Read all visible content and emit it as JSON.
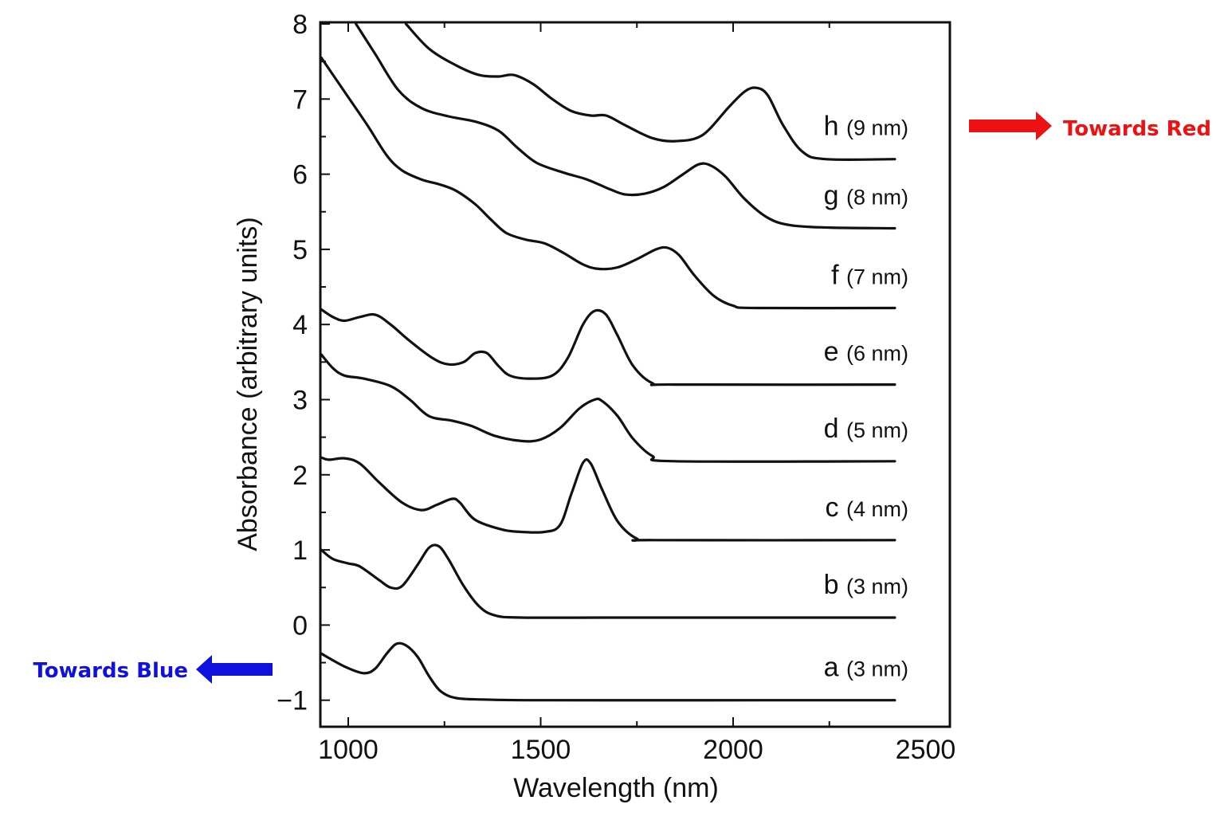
{
  "chart_data": {
    "type": "line",
    "title": "",
    "xlabel": "Wavelength (nm)",
    "ylabel": "Absorbance (arbitrary units)",
    "xlim": [
      930,
      2500
    ],
    "ylim": [
      -1.35,
      8
    ],
    "xticks": [
      1000,
      1500,
      2000,
      2500
    ],
    "xtick_labels": [
      "1000",
      "1500",
      "2000",
      "2500"
    ],
    "yticks": [
      -1,
      0,
      1,
      2,
      3,
      4,
      5,
      6,
      7,
      8
    ],
    "ytick_labels": [
      "−1",
      "0",
      "1",
      "2",
      "3",
      "4",
      "5",
      "6",
      "7",
      "8"
    ],
    "grid": false,
    "legend": "none (labels placed at right end of each curve)",
    "series": [
      {
        "name": "a",
        "size_label": "(3 nm)",
        "points": [
          [
            930,
            -0.38
          ],
          [
            990,
            -0.55
          ],
          [
            1040,
            -0.64
          ],
          [
            1070,
            -0.58
          ],
          [
            1100,
            -0.38
          ],
          [
            1125,
            -0.25
          ],
          [
            1150,
            -0.27
          ],
          [
            1180,
            -0.42
          ],
          [
            1210,
            -0.68
          ],
          [
            1240,
            -0.88
          ],
          [
            1280,
            -0.97
          ],
          [
            1350,
            -0.99
          ],
          [
            1500,
            -1.0
          ],
          [
            2100,
            -1.0
          ],
          [
            2420,
            -1.0
          ]
        ]
      },
      {
        "name": "b",
        "size_label": "(3 nm)",
        "points": [
          [
            930,
            1.0
          ],
          [
            960,
            0.88
          ],
          [
            1000,
            0.82
          ],
          [
            1030,
            0.78
          ],
          [
            1080,
            0.6
          ],
          [
            1110,
            0.5
          ],
          [
            1140,
            0.52
          ],
          [
            1180,
            0.8
          ],
          [
            1210,
            1.03
          ],
          [
            1235,
            1.05
          ],
          [
            1260,
            0.88
          ],
          [
            1300,
            0.52
          ],
          [
            1340,
            0.25
          ],
          [
            1380,
            0.13
          ],
          [
            1450,
            0.1
          ],
          [
            1700,
            0.1
          ],
          [
            2420,
            0.1
          ]
        ]
      },
      {
        "name": "c",
        "size_label": "(4 nm)",
        "points": [
          [
            930,
            2.23
          ],
          [
            950,
            2.2
          ],
          [
            990,
            2.22
          ],
          [
            1030,
            2.15
          ],
          [
            1080,
            1.9
          ],
          [
            1140,
            1.63
          ],
          [
            1190,
            1.53
          ],
          [
            1230,
            1.6
          ],
          [
            1270,
            1.68
          ],
          [
            1290,
            1.63
          ],
          [
            1330,
            1.4
          ],
          [
            1400,
            1.27
          ],
          [
            1450,
            1.24
          ],
          [
            1510,
            1.24
          ],
          [
            1550,
            1.33
          ],
          [
            1580,
            1.75
          ],
          [
            1610,
            2.16
          ],
          [
            1630,
            2.15
          ],
          [
            1660,
            1.8
          ],
          [
            1700,
            1.38
          ],
          [
            1750,
            1.15
          ],
          [
            1800,
            1.13
          ],
          [
            2420,
            1.13
          ]
        ]
      },
      {
        "name": "d",
        "size_label": "(5 nm)",
        "points": [
          [
            930,
            3.6
          ],
          [
            960,
            3.42
          ],
          [
            990,
            3.32
          ],
          [
            1040,
            3.28
          ],
          [
            1110,
            3.18
          ],
          [
            1160,
            3.0
          ],
          [
            1210,
            2.78
          ],
          [
            1270,
            2.72
          ],
          [
            1320,
            2.65
          ],
          [
            1380,
            2.52
          ],
          [
            1450,
            2.45
          ],
          [
            1500,
            2.47
          ],
          [
            1550,
            2.62
          ],
          [
            1600,
            2.88
          ],
          [
            1640,
            3.0
          ],
          [
            1660,
            2.98
          ],
          [
            1700,
            2.78
          ],
          [
            1740,
            2.48
          ],
          [
            1790,
            2.25
          ],
          [
            1850,
            2.18
          ],
          [
            2420,
            2.18
          ]
        ]
      },
      {
        "name": "e",
        "size_label": "(6 nm)",
        "points": [
          [
            930,
            4.2
          ],
          [
            960,
            4.1
          ],
          [
            990,
            4.05
          ],
          [
            1030,
            4.1
          ],
          [
            1070,
            4.13
          ],
          [
            1110,
            4.0
          ],
          [
            1160,
            3.78
          ],
          [
            1220,
            3.55
          ],
          [
            1260,
            3.47
          ],
          [
            1300,
            3.5
          ],
          [
            1330,
            3.62
          ],
          [
            1360,
            3.62
          ],
          [
            1390,
            3.45
          ],
          [
            1420,
            3.32
          ],
          [
            1470,
            3.28
          ],
          [
            1530,
            3.32
          ],
          [
            1570,
            3.55
          ],
          [
            1610,
            4.0
          ],
          [
            1640,
            4.18
          ],
          [
            1670,
            4.13
          ],
          [
            1700,
            3.85
          ],
          [
            1740,
            3.45
          ],
          [
            1790,
            3.22
          ],
          [
            1850,
            3.2
          ],
          [
            2420,
            3.2
          ]
        ]
      },
      {
        "name": "f",
        "size_label": "(7 nm)",
        "points": [
          [
            930,
            7.55
          ],
          [
            990,
            7.1
          ],
          [
            1050,
            6.65
          ],
          [
            1100,
            6.25
          ],
          [
            1140,
            6.05
          ],
          [
            1190,
            5.93
          ],
          [
            1240,
            5.86
          ],
          [
            1280,
            5.78
          ],
          [
            1330,
            5.6
          ],
          [
            1370,
            5.4
          ],
          [
            1410,
            5.22
          ],
          [
            1460,
            5.13
          ],
          [
            1510,
            5.08
          ],
          [
            1560,
            4.95
          ],
          [
            1610,
            4.8
          ],
          [
            1650,
            4.74
          ],
          [
            1700,
            4.76
          ],
          [
            1750,
            4.87
          ],
          [
            1800,
            5.0
          ],
          [
            1830,
            5.02
          ],
          [
            1860,
            4.92
          ],
          [
            1900,
            4.65
          ],
          [
            1950,
            4.38
          ],
          [
            2000,
            4.25
          ],
          [
            2060,
            4.22
          ],
          [
            2420,
            4.22
          ]
        ]
      },
      {
        "name": "g",
        "size_label": "(8 nm)",
        "points": [
          [
            1020,
            8.0
          ],
          [
            1070,
            7.6
          ],
          [
            1130,
            7.12
          ],
          [
            1190,
            6.88
          ],
          [
            1260,
            6.77
          ],
          [
            1330,
            6.7
          ],
          [
            1390,
            6.58
          ],
          [
            1440,
            6.35
          ],
          [
            1490,
            6.15
          ],
          [
            1560,
            6.02
          ],
          [
            1620,
            5.93
          ],
          [
            1680,
            5.8
          ],
          [
            1720,
            5.73
          ],
          [
            1770,
            5.74
          ],
          [
            1820,
            5.83
          ],
          [
            1870,
            6.0
          ],
          [
            1910,
            6.13
          ],
          [
            1940,
            6.12
          ],
          [
            1980,
            5.97
          ],
          [
            2030,
            5.67
          ],
          [
            2090,
            5.42
          ],
          [
            2150,
            5.32
          ],
          [
            2250,
            5.29
          ],
          [
            2420,
            5.28
          ]
        ]
      },
      {
        "name": "h",
        "size_label": "(9 nm)",
        "points": [
          [
            1150,
            8.0
          ],
          [
            1210,
            7.67
          ],
          [
            1280,
            7.45
          ],
          [
            1340,
            7.32
          ],
          [
            1390,
            7.3
          ],
          [
            1430,
            7.32
          ],
          [
            1480,
            7.2
          ],
          [
            1530,
            7.0
          ],
          [
            1580,
            6.84
          ],
          [
            1630,
            6.78
          ],
          [
            1670,
            6.78
          ],
          [
            1720,
            6.65
          ],
          [
            1790,
            6.48
          ],
          [
            1850,
            6.44
          ],
          [
            1920,
            6.52
          ],
          [
            1990,
            6.9
          ],
          [
            2030,
            7.1
          ],
          [
            2060,
            7.15
          ],
          [
            2090,
            7.05
          ],
          [
            2130,
            6.65
          ],
          [
            2180,
            6.3
          ],
          [
            2240,
            6.2
          ],
          [
            2420,
            6.2
          ]
        ]
      }
    ]
  },
  "annotations": {
    "towards_red": {
      "label": "Towards Red",
      "color": "#ee1111",
      "arrow": "right"
    },
    "towards_blue": {
      "label": "Towards Blue",
      "color": "#1111dd",
      "arrow": "left"
    }
  }
}
